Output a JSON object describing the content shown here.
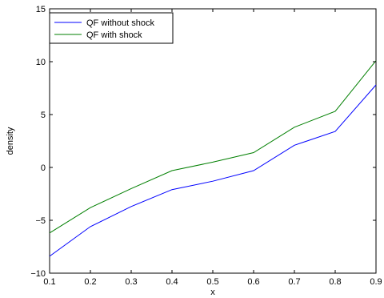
{
  "chart_data": {
    "type": "line",
    "title": "",
    "xlabel": "x",
    "ylabel": "density",
    "xlim": [
      0.1,
      0.9
    ],
    "ylim": [
      -10,
      15
    ],
    "x_ticks": [
      0.1,
      0.2,
      0.3,
      0.4,
      0.5,
      0.6,
      0.7,
      0.8,
      0.9
    ],
    "x_tick_labels": [
      "0.1",
      "0.2",
      "0.3",
      "0.4",
      "0.5",
      "0.6",
      "0.7",
      "0.8",
      "0.9"
    ],
    "y_ticks": [
      -10,
      -5,
      0,
      5,
      10,
      15
    ],
    "y_tick_labels": [
      "−10",
      "−5",
      "0",
      "5",
      "10",
      "15"
    ],
    "grid": false,
    "legend_position": "top-left",
    "x": [
      0.1,
      0.2,
      0.3,
      0.4,
      0.5,
      0.6,
      0.7,
      0.8,
      0.9
    ],
    "series": [
      {
        "name": "QF without shock",
        "color": "#0000ff",
        "values": [
          -8.4,
          -5.6,
          -3.7,
          -2.1,
          -1.3,
          -0.3,
          2.1,
          3.4,
          7.8
        ]
      },
      {
        "name": "QF with shock",
        "color": "#007f00",
        "values": [
          -6.2,
          -3.8,
          -2.0,
          -0.3,
          0.5,
          1.4,
          3.8,
          5.3,
          10.1
        ]
      }
    ]
  }
}
